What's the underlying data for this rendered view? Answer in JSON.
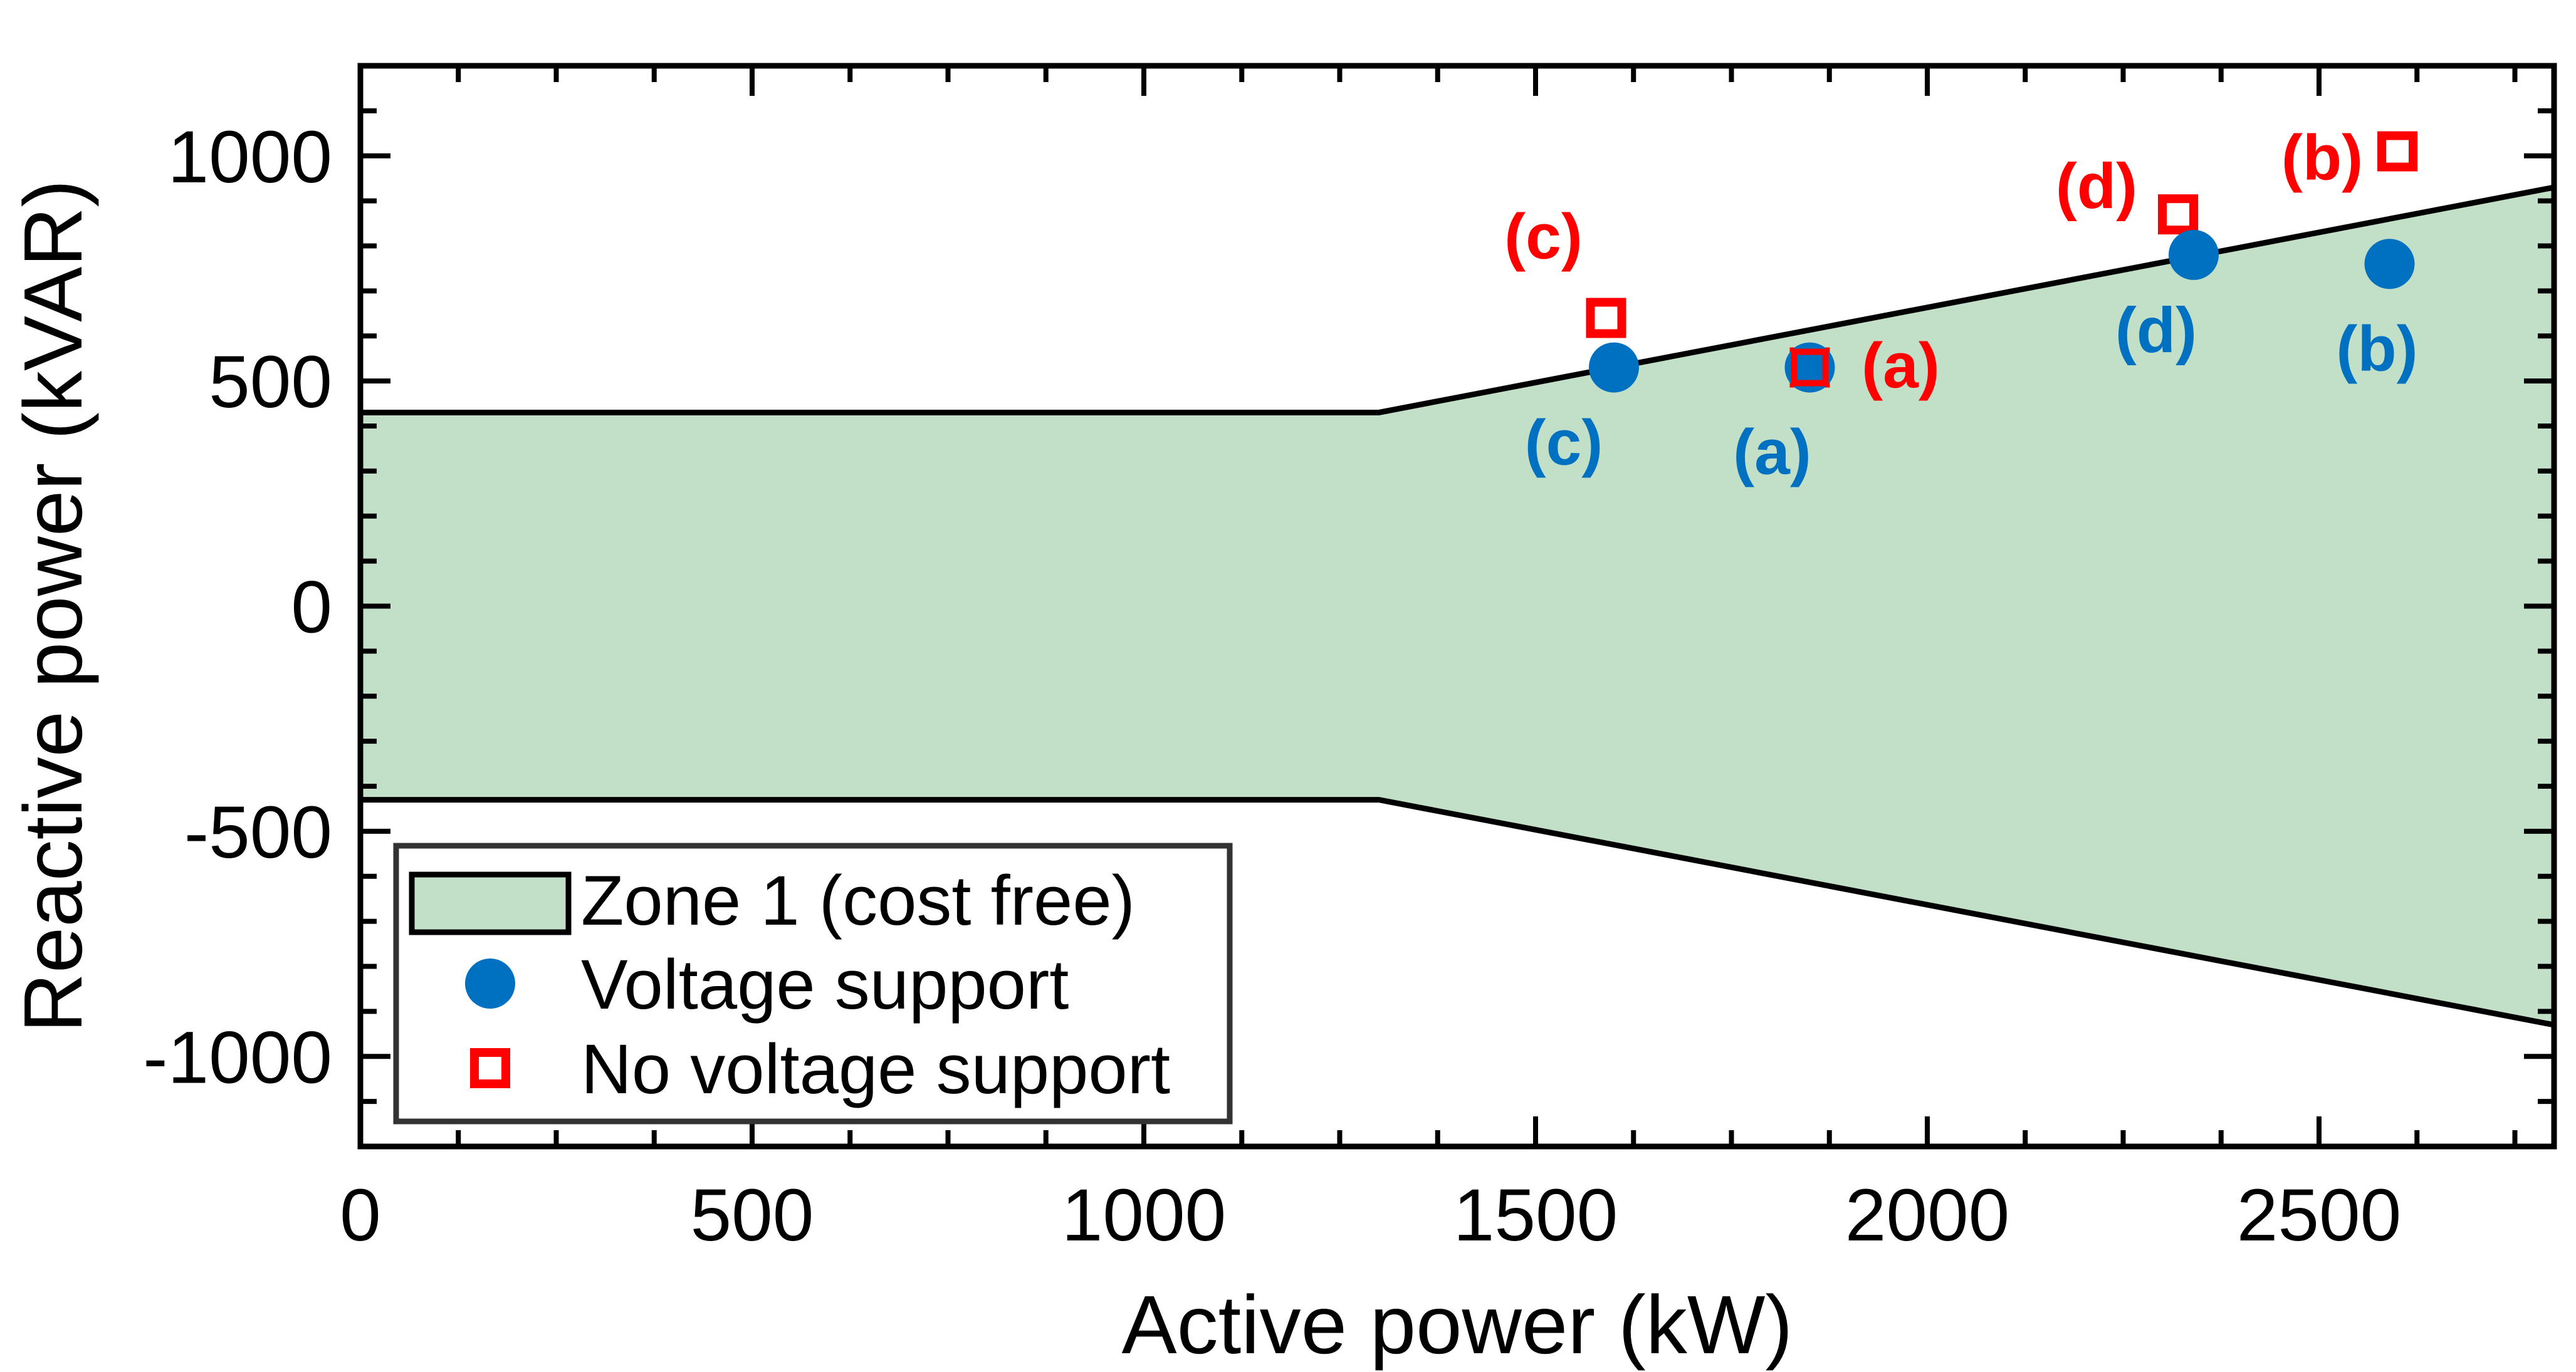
{
  "chart_data": {
    "type": "scatter",
    "title": "",
    "xlabel": "Active power (kW)",
    "ylabel": "Reactive power (kVAR)",
    "xlim": [
      0,
      2800
    ],
    "ylim": [
      -1200,
      1200
    ],
    "x_ticks": [
      0,
      500,
      1000,
      1500,
      2000,
      2500
    ],
    "x_tick_labels": [
      "0",
      "500",
      "1000",
      "1500",
      "2000",
      "2500"
    ],
    "y_ticks": [
      1000,
      500,
      0,
      -500,
      -1000
    ],
    "y_tick_labels": [
      "1000",
      "500",
      "0",
      "-500",
      "-1000"
    ],
    "grid": false,
    "zone": {
      "name": "Zone 1 (cost free)",
      "color": "#c2dfc8",
      "upper_boundary": [
        {
          "x": 0,
          "y": 430
        },
        {
          "x": 1300,
          "y": 430
        },
        {
          "x": 2800,
          "y": 930
        }
      ],
      "lower_boundary": [
        {
          "x": 0,
          "y": -430
        },
        {
          "x": 1300,
          "y": -430
        },
        {
          "x": 2800,
          "y": -930
        }
      ]
    },
    "series": [
      {
        "name": "Voltage support",
        "marker": "circle",
        "color": "#0070c0",
        "points": [
          {
            "label": "(a)",
            "x": 1850,
            "y": 530
          },
          {
            "label": "(b)",
            "x": 2590,
            "y": 760
          },
          {
            "label": "(c)",
            "x": 1600,
            "y": 530
          },
          {
            "label": "(d)",
            "x": 2340,
            "y": 780
          }
        ]
      },
      {
        "name": "No voltage support",
        "marker": "square",
        "color": "#ff0000",
        "points": [
          {
            "label": "(a)",
            "x": 1850,
            "y": 530
          },
          {
            "label": "(b)",
            "x": 2600,
            "y": 1010
          },
          {
            "label": "(c)",
            "x": 1590,
            "y": 640
          },
          {
            "label": "(d)",
            "x": 2320,
            "y": 870
          }
        ]
      }
    ],
    "legend": {
      "position": "bottom-left",
      "items": [
        "Zone 1 (cost free)",
        "Voltage support",
        "No voltage support"
      ]
    }
  }
}
